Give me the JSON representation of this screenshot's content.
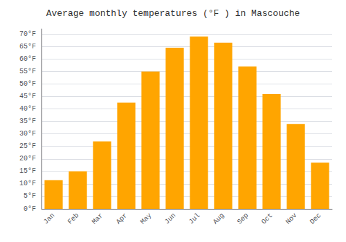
{
  "chart_data": {
    "type": "bar",
    "title": "Average monthly temperatures (°F ) in Mascouche",
    "categories": [
      "Jan",
      "Feb",
      "Mar",
      "Apr",
      "May",
      "Jun",
      "Jul",
      "Aug",
      "Sep",
      "Oct",
      "Nov",
      "Dec"
    ],
    "values": [
      11.5,
      15.0,
      27.0,
      42.5,
      55.0,
      64.5,
      69.0,
      66.5,
      57.0,
      46.0,
      34.0,
      18.5
    ],
    "color": "#FFA500",
    "ylim": [
      0,
      72
    ],
    "yticks": [
      {
        "value": 0,
        "label": "0°F"
      },
      {
        "value": 5,
        "label": "5°F"
      },
      {
        "value": 10,
        "label": "10°F"
      },
      {
        "value": 15,
        "label": "15°F"
      },
      {
        "value": 20,
        "label": "20°F"
      },
      {
        "value": 25,
        "label": "25°F"
      },
      {
        "value": 30,
        "label": "30°F"
      },
      {
        "value": 35,
        "label": "35°F"
      },
      {
        "value": 40,
        "label": "40°F"
      },
      {
        "value": 45,
        "label": "45°F"
      },
      {
        "value": 50,
        "label": "50°F"
      },
      {
        "value": 55,
        "label": "55°F"
      },
      {
        "value": 60,
        "label": "60°F"
      },
      {
        "value": 65,
        "label": "65°F"
      },
      {
        "value": 70,
        "label": "70°F"
      }
    ],
    "grid": true
  }
}
